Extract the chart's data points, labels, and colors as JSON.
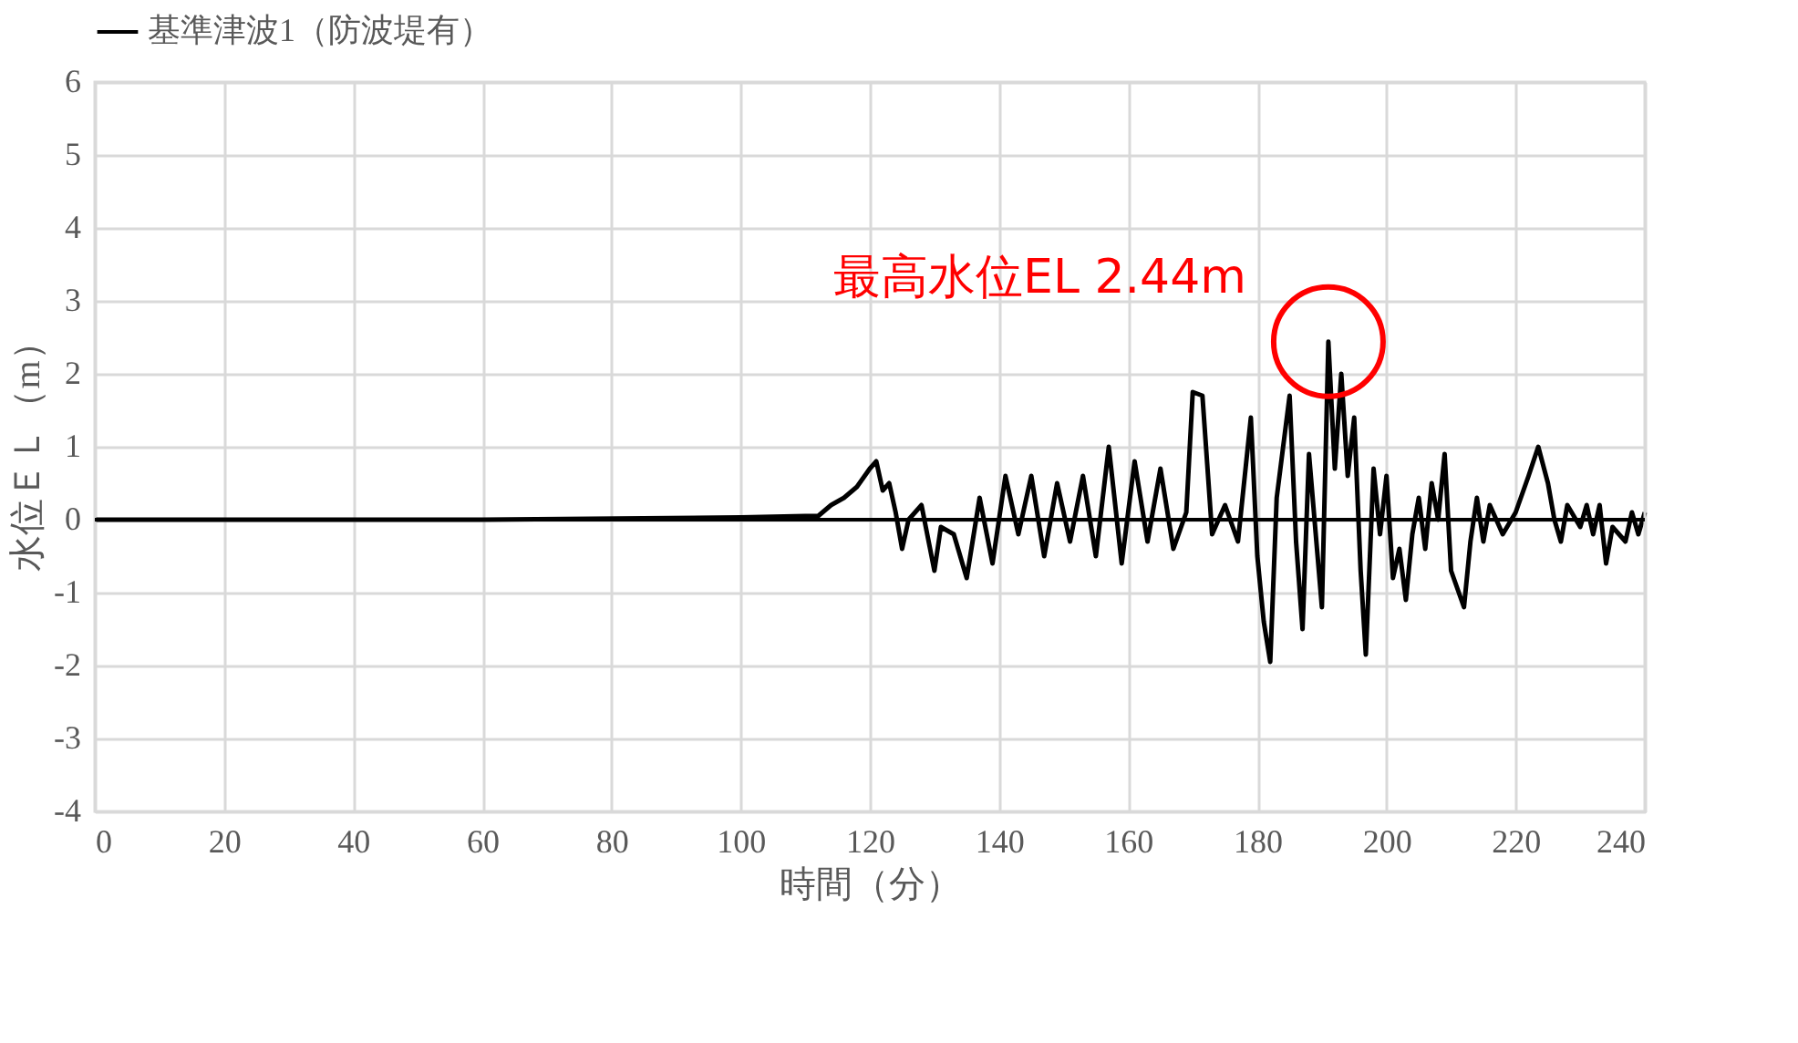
{
  "chart_data": {
    "type": "line",
    "xlabel": "時間（分）",
    "ylabel": "水位ＥＬ（m）",
    "xlim": [
      0,
      240
    ],
    "xticks": [
      0,
      20,
      40,
      60,
      80,
      100,
      120,
      140,
      160,
      180,
      200,
      220,
      240
    ],
    "ylim": [
      -4,
      6
    ],
    "yticks": [
      -4,
      -3,
      -2,
      -1,
      0,
      1,
      2,
      3,
      4,
      5,
      6
    ],
    "grid": true,
    "legend": "top",
    "line_style": "solid",
    "marker": "none",
    "ref_lines": [
      {
        "axis": "y",
        "value": 0,
        "color": "#000000"
      }
    ],
    "annotations": [
      {
        "text": "最高水位EL 2.44m",
        "x": 191,
        "y": 2.44
      }
    ],
    "series": [
      {
        "name": "基準津波1（防波堤有）",
        "color": "#000000",
        "x": [
          0,
          60,
          100,
          110,
          112,
          114,
          116,
          118,
          120,
          121,
          122,
          123,
          124,
          125,
          126,
          128,
          130,
          131,
          133,
          135,
          137,
          139,
          141,
          143,
          145,
          147,
          149,
          151,
          153,
          155,
          157,
          159,
          161,
          163,
          165,
          167,
          169,
          170,
          171.5,
          173,
          175,
          177,
          179,
          180,
          181,
          182,
          183,
          185,
          186,
          187,
          188,
          190,
          191,
          192,
          193,
          194,
          195,
          196,
          196.8,
          198,
          199,
          200,
          201,
          202,
          203,
          204,
          205,
          206,
          207,
          208,
          209,
          210,
          212,
          213,
          214,
          215,
          216,
          218,
          220,
          222,
          223.5,
          225,
          226,
          227,
          228,
          230,
          231,
          232,
          233,
          234,
          235,
          237,
          238,
          239,
          240
        ],
        "values": [
          0,
          0,
          0.03,
          0.05,
          0.05,
          0.2,
          0.3,
          0.45,
          0.7,
          0.8,
          0.4,
          0.5,
          0.1,
          -0.4,
          0.0,
          0.2,
          -0.7,
          -0.1,
          -0.2,
          -0.8,
          0.3,
          -0.6,
          0.6,
          -0.2,
          0.6,
          -0.5,
          0.5,
          -0.3,
          0.6,
          -0.5,
          1.0,
          -0.6,
          0.8,
          -0.3,
          0.7,
          -0.4,
          0.1,
          1.75,
          1.7,
          -0.2,
          0.2,
          -0.3,
          1.4,
          -0.5,
          -1.4,
          -1.95,
          0.3,
          1.7,
          -0.3,
          -1.5,
          0.9,
          -1.2,
          2.44,
          0.7,
          2.0,
          0.6,
          1.4,
          -0.7,
          -1.85,
          0.7,
          -0.2,
          0.6,
          -0.8,
          -0.4,
          -1.1,
          -0.2,
          0.3,
          -0.4,
          0.5,
          0.0,
          0.9,
          -0.7,
          -1.2,
          -0.3,
          0.3,
          -0.3,
          0.2,
          -0.2,
          0.1,
          0.6,
          1.0,
          0.5,
          0.0,
          -0.3,
          0.2,
          -0.1,
          0.2,
          -0.2,
          0.2,
          -0.6,
          -0.1,
          -0.3,
          0.1,
          -0.2,
          0.1
        ]
      }
    ]
  }
}
